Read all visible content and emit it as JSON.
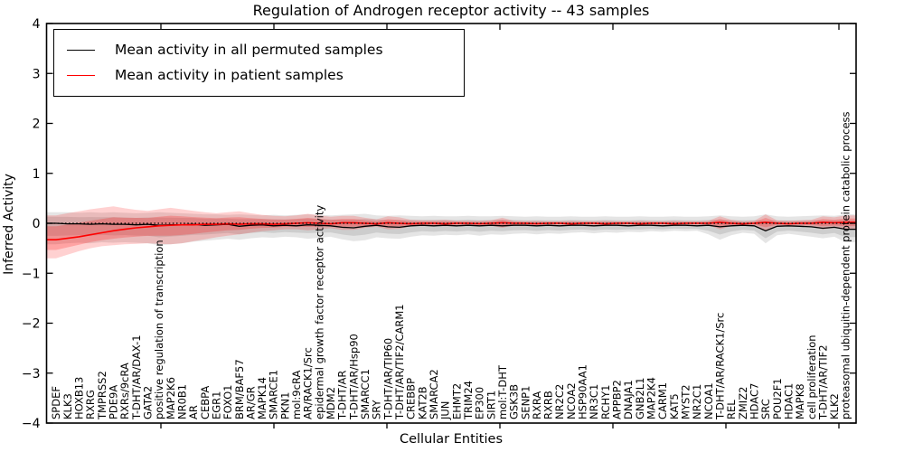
{
  "figure": {
    "title": "Regulation of Androgen receptor activity -- 43 samples",
    "xlabel": "Cellular Entities",
    "ylabel": "Inferred Activity"
  },
  "legend": {
    "entries": [
      {
        "label": "Mean activity in all permuted samples",
        "color": "#000000"
      },
      {
        "label": "Mean activity in patient samples",
        "color": "#ff0000"
      }
    ]
  },
  "colors": {
    "background": "#ffffff",
    "axis": "#000000",
    "permuted_line": "#000000",
    "patient_line": "#ff0000",
    "permuted_band": "#000000",
    "patient_band": "#ff0000",
    "zero_line": "#000000"
  },
  "chart_data": {
    "type": "line",
    "title": "Regulation of Androgen receptor activity -- 43 samples",
    "xlabel": "Cellular Entities",
    "ylabel": "Inferred Activity",
    "ylim": [
      -4,
      4
    ],
    "ytick_labels": [
      "4",
      "3",
      "2",
      "1",
      "0",
      "−1",
      "−2",
      "−3",
      "−4"
    ],
    "ytick_values": [
      4,
      3,
      2,
      1,
      0,
      -1,
      -2,
      -3,
      -4
    ],
    "grid": false,
    "legend_position": "upper left",
    "zero_reference_line": "dotted",
    "categories": [
      "SPDEF",
      "KLK3",
      "HOXB13",
      "RXRG",
      "TMPRSS2",
      "PDE9A",
      "RXRs/9cRA",
      "T-DHT/AR/DAX-1",
      "GATA2",
      "positive regulation of transcription",
      "MAP2K6",
      "NR0B1",
      "AR",
      "CEBPA",
      "EGR1",
      "FOXO1",
      "BRM/BAF57",
      "AR/GR",
      "MAPK14",
      "SMARCE1",
      "PKN1",
      "mol:9cRA",
      "AR/RACK1/Src",
      "epidermal growth factor receptor activity",
      "MDM2",
      "T-DHT/AR",
      "T-DHT/AR/Hsp90",
      "SMARCC1",
      "SRY",
      "T-DHT/AR/TIP60",
      "T-DHT/AR/TIF2/CARM1",
      "CREBBP",
      "KAT2B",
      "SMARCA2",
      "JUN",
      "EHMT2",
      "TRIM24",
      "EP300",
      "SIRT1",
      "mol:T-DHT",
      "GSK3B",
      "SENP1",
      "RXRA",
      "RXRB",
      "NR2C2",
      "NCOA2",
      "HSP90AA1",
      "NR3C1",
      "RCHY1",
      "APPBP2",
      "DNAJA1",
      "GNB2L1",
      "MAP2K4",
      "CARM1",
      "KAT5",
      "MYST2",
      "NR2C1",
      "NCOA1",
      "T-DHT/AR/RACK1/Src",
      "REL",
      "ZMIZ2",
      "HDAC7",
      "SRC",
      "POU2F1",
      "HDAC1",
      "MAPK8",
      "cell proliferation",
      "T-DHT/AR/TIF2",
      "KLK2",
      "proteasomal ubiquitin-dependent protein catabolic process"
    ],
    "series": [
      {
        "name": "Mean activity in all permuted samples",
        "color": "#000000",
        "line_width": 1.3,
        "values": [
          0.0,
          -0.01,
          -0.01,
          -0.02,
          -0.01,
          -0.02,
          -0.02,
          -0.03,
          -0.02,
          -0.04,
          -0.03,
          -0.03,
          -0.02,
          -0.04,
          -0.03,
          -0.02,
          -0.06,
          -0.04,
          -0.03,
          -0.05,
          -0.04,
          -0.05,
          -0.03,
          -0.04,
          -0.05,
          -0.08,
          -0.09,
          -0.06,
          -0.04,
          -0.07,
          -0.08,
          -0.05,
          -0.04,
          -0.05,
          -0.04,
          -0.05,
          -0.04,
          -0.05,
          -0.04,
          -0.05,
          -0.04,
          -0.04,
          -0.05,
          -0.04,
          -0.05,
          -0.04,
          -0.04,
          -0.05,
          -0.04,
          -0.04,
          -0.05,
          -0.04,
          -0.04,
          -0.05,
          -0.04,
          -0.04,
          -0.05,
          -0.04,
          -0.07,
          -0.05,
          -0.04,
          -0.05,
          -0.15,
          -0.06,
          -0.05,
          -0.06,
          -0.07,
          -0.1,
          -0.08,
          -0.12
        ]
      },
      {
        "name": "Mean activity in patient samples",
        "color": "#ff0000",
        "line_width": 1.6,
        "values": [
          -0.33,
          -0.3,
          -0.27,
          -0.23,
          -0.19,
          -0.15,
          -0.12,
          -0.09,
          -0.07,
          -0.05,
          -0.04,
          -0.03,
          -0.03,
          -0.02,
          -0.02,
          -0.01,
          -0.02,
          -0.01,
          -0.01,
          -0.02,
          -0.01,
          0.0,
          0.01,
          0.0,
          -0.01,
          0.01,
          0.01,
          0.0,
          -0.01,
          0.01,
          0.0,
          -0.01,
          0.0,
          0.0,
          -0.01,
          0.0,
          0.0,
          -0.01,
          0.0,
          0.01,
          0.0,
          0.0,
          -0.01,
          0.0,
          0.0,
          -0.01,
          0.0,
          0.0,
          -0.01,
          0.0,
          0.0,
          -0.01,
          0.0,
          0.0,
          -0.01,
          0.0,
          0.0,
          0.0,
          0.02,
          0.0,
          -0.01,
          0.0,
          0.02,
          0.0,
          -0.01,
          0.0,
          0.0,
          0.02,
          0.01,
          0.02
        ]
      }
    ],
    "bands": [
      {
        "name": "permuted-std-band",
        "series_ref": 0,
        "color": "#000000",
        "opacity": 0.1,
        "inner_opacity": 0.1,
        "inner_scale": 0.6,
        "upper": [
          0.22,
          0.22,
          0.21,
          0.22,
          0.21,
          0.22,
          0.21,
          0.2,
          0.21,
          0.22,
          0.21,
          0.2,
          0.19,
          0.18,
          0.18,
          0.17,
          0.18,
          0.17,
          0.16,
          0.17,
          0.16,
          0.17,
          0.18,
          0.17,
          0.16,
          0.17,
          0.18,
          0.19,
          0.16,
          0.15,
          0.16,
          0.15,
          0.14,
          0.15,
          0.14,
          0.14,
          0.15,
          0.14,
          0.14,
          0.15,
          0.14,
          0.13,
          0.14,
          0.13,
          0.13,
          0.14,
          0.13,
          0.13,
          0.14,
          0.13,
          0.13,
          0.14,
          0.13,
          0.13,
          0.14,
          0.13,
          0.13,
          0.14,
          0.16,
          0.14,
          0.13,
          0.14,
          0.18,
          0.14,
          0.13,
          0.14,
          0.15,
          0.16,
          0.15,
          0.18
        ],
        "lower": [
          -0.42,
          -0.4,
          -0.39,
          -0.4,
          -0.38,
          -0.39,
          -0.38,
          -0.39,
          -0.4,
          -0.44,
          -0.42,
          -0.4,
          -0.37,
          -0.35,
          -0.33,
          -0.31,
          -0.33,
          -0.3,
          -0.28,
          -0.29,
          -0.27,
          -0.28,
          -0.31,
          -0.29,
          -0.27,
          -0.32,
          -0.36,
          -0.34,
          -0.28,
          -0.3,
          -0.31,
          -0.27,
          -0.24,
          -0.25,
          -0.23,
          -0.24,
          -0.22,
          -0.25,
          -0.22,
          -0.23,
          -0.21,
          -0.2,
          -0.22,
          -0.2,
          -0.21,
          -0.19,
          -0.18,
          -0.2,
          -0.18,
          -0.19,
          -0.17,
          -0.18,
          -0.16,
          -0.17,
          -0.15,
          -0.16,
          -0.15,
          -0.22,
          -0.33,
          -0.24,
          -0.19,
          -0.21,
          -0.4,
          -0.24,
          -0.21,
          -0.24,
          -0.27,
          -0.3,
          -0.27,
          -0.38
        ]
      },
      {
        "name": "patient-std-band",
        "series_ref": 1,
        "color": "#ff0000",
        "opacity": 0.18,
        "inner_opacity": 0.22,
        "inner_scale": 0.55,
        "upper": [
          0.16,
          0.2,
          0.24,
          0.28,
          0.31,
          0.34,
          0.3,
          0.27,
          0.25,
          0.28,
          0.31,
          0.28,
          0.25,
          0.22,
          0.2,
          0.22,
          0.24,
          0.2,
          0.17,
          0.15,
          0.14,
          0.16,
          0.19,
          0.16,
          0.13,
          0.15,
          0.15,
          0.11,
          0.08,
          0.14,
          0.12,
          0.07,
          0.06,
          0.06,
          0.07,
          0.05,
          0.05,
          0.05,
          0.06,
          0.11,
          0.05,
          0.04,
          0.05,
          0.04,
          0.04,
          0.05,
          0.04,
          0.04,
          0.05,
          0.04,
          0.04,
          0.05,
          0.04,
          0.04,
          0.05,
          0.04,
          0.04,
          0.05,
          0.14,
          0.07,
          0.04,
          0.05,
          0.18,
          0.06,
          0.05,
          0.06,
          0.07,
          0.14,
          0.12,
          0.16
        ],
        "lower": [
          -0.7,
          -0.63,
          -0.56,
          -0.5,
          -0.46,
          -0.44,
          -0.42,
          -0.41,
          -0.4,
          -0.41,
          -0.42,
          -0.4,
          -0.36,
          -0.32,
          -0.28,
          -0.25,
          -0.22,
          -0.19,
          -0.16,
          -0.14,
          -0.12,
          -0.12,
          -0.14,
          -0.12,
          -0.1,
          -0.13,
          -0.13,
          -0.09,
          -0.07,
          -0.12,
          -0.11,
          -0.06,
          -0.05,
          -0.05,
          -0.06,
          -0.04,
          -0.04,
          -0.04,
          -0.05,
          -0.09,
          -0.04,
          -0.03,
          -0.04,
          -0.03,
          -0.03,
          -0.04,
          -0.03,
          -0.03,
          -0.04,
          -0.03,
          -0.03,
          -0.04,
          -0.03,
          -0.03,
          -0.04,
          -0.03,
          -0.03,
          -0.04,
          -0.12,
          -0.06,
          -0.03,
          -0.04,
          -0.16,
          -0.05,
          -0.04,
          -0.05,
          -0.06,
          -0.12,
          -0.09,
          -0.12
        ]
      }
    ]
  }
}
